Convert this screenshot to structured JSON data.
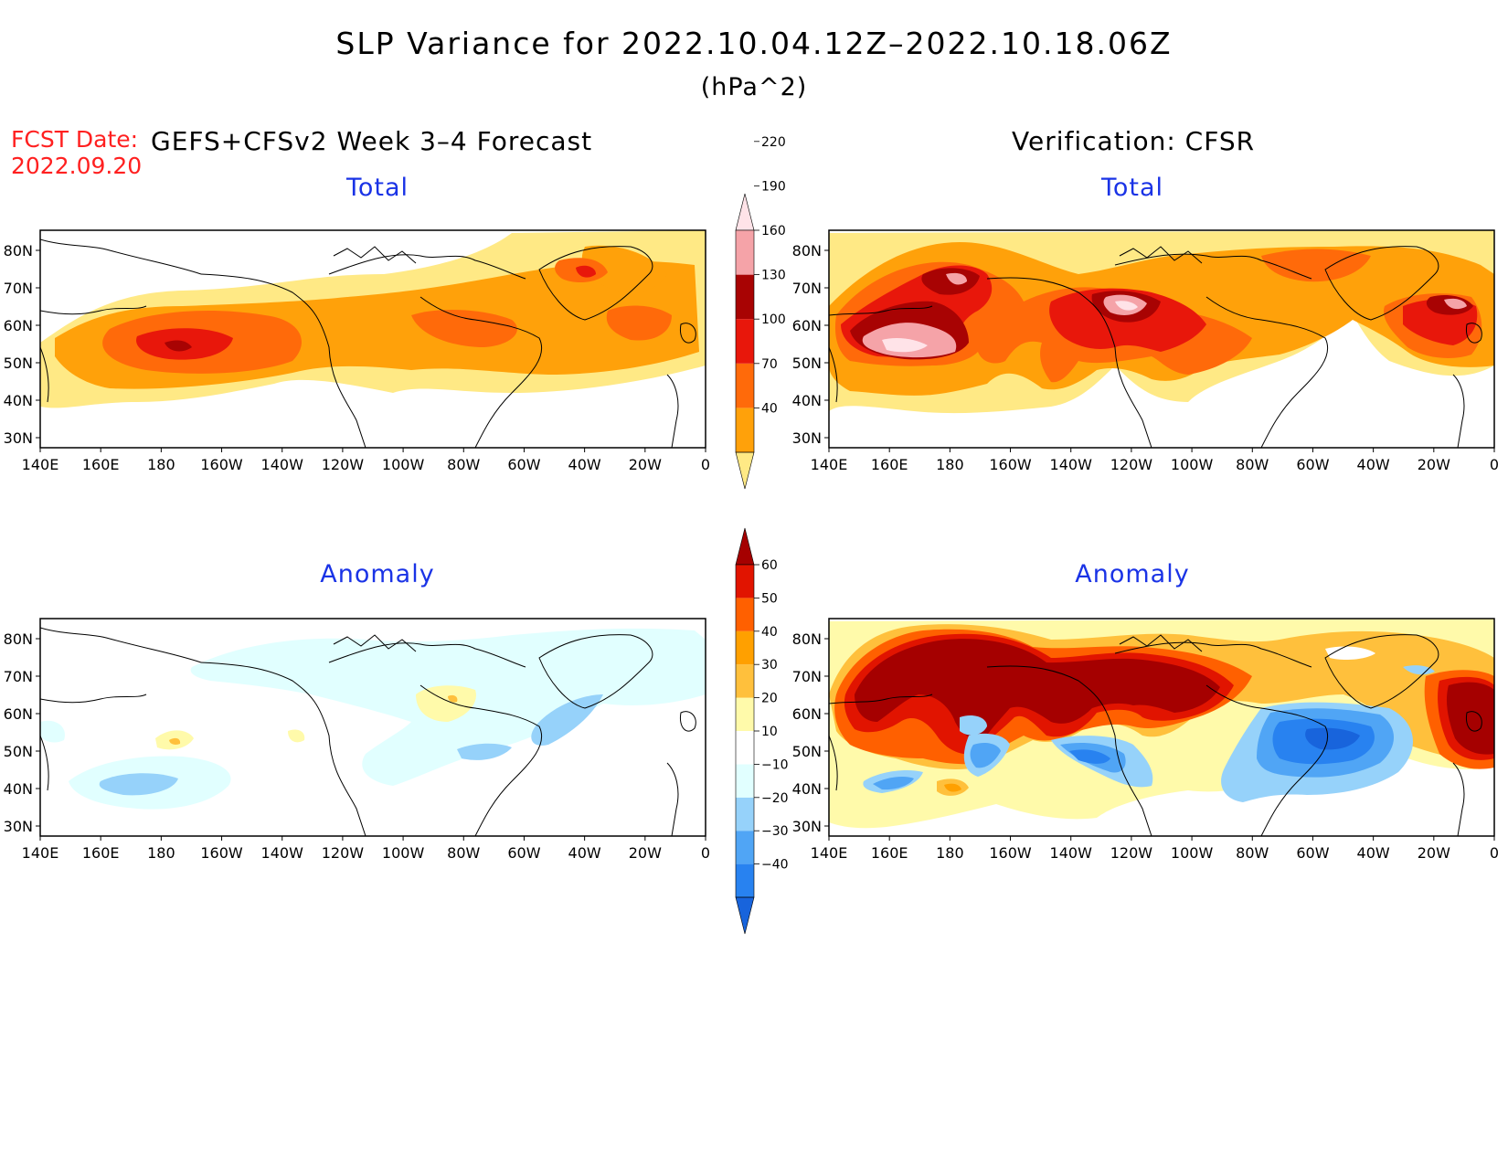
{
  "title": "SLP Variance for 2022.10.04.12Z–2022.10.18.06Z",
  "units": "(hPa^2)",
  "fcst_label": "FCST Date:",
  "fcst_date": "2022.09.20",
  "left_header": "GEFS+CFSv2 Week 3–4 Forecast",
  "right_header": "Verification: CFSR",
  "panel_titles": {
    "top_left": "Total",
    "top_right": "Total",
    "bottom_left": "Anomaly",
    "bottom_right": "Anomaly"
  },
  "lat_labels": [
    "80N",
    "70N",
    "60N",
    "50N",
    "40N",
    "30N"
  ],
  "lon_labels": [
    "140E",
    "160E",
    "180",
    "160W",
    "140W",
    "120W",
    "100W",
    "80W",
    "60W",
    "40W",
    "20W",
    "0"
  ],
  "colorbars": {
    "total": {
      "levels": [
        "40",
        "70",
        "100",
        "130",
        "160",
        "190",
        "220"
      ],
      "colors": [
        "#ffe985",
        "#ffa10a",
        "#ff6a0a",
        "#e8170b",
        "#a80303",
        "#f5a3a8",
        "#ffe3e8"
      ]
    },
    "anomaly": {
      "levels": [
        "−40",
        "−30",
        "−20",
        "−10",
        "10",
        "20",
        "30",
        "40",
        "50",
        "60"
      ],
      "colors": [
        "#1864dc",
        "#2882f0",
        "#50a5f5",
        "#96d2fa",
        "#e1ffff",
        "#ffffff",
        "#fffaaa",
        "#ffc03c",
        "#ffa000",
        "#ff6000",
        "#e11400",
        "#a50000"
      ]
    }
  }
}
